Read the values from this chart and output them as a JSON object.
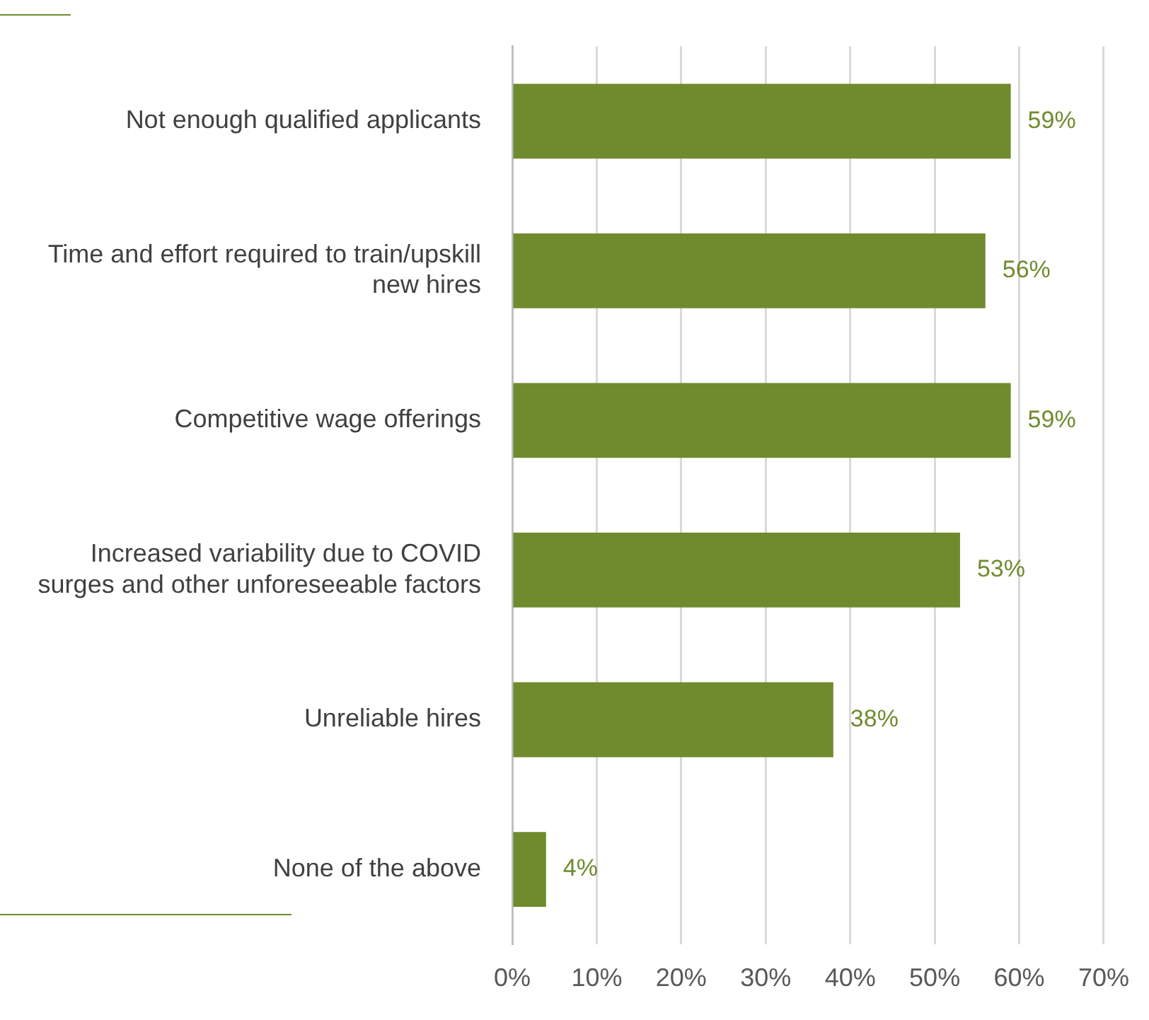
{
  "chart_data": {
    "type": "bar",
    "orientation": "horizontal",
    "categories": [
      "Not enough qualified applicants",
      "Time and effort required to train/upskill new hires",
      "Competitive wage offerings",
      "Increased variability due to COVID surges and other unforeseeable factors",
      "Unreliable hires",
      "None of the above"
    ],
    "values": [
      59,
      56,
      59,
      53,
      38,
      4
    ],
    "value_labels": [
      "59%",
      "56%",
      "59%",
      "53%",
      "38%",
      "4%"
    ],
    "color": "#6f8b2e",
    "xlim": [
      0,
      70
    ],
    "xticks": [
      {
        "value": 0,
        "label": "0%"
      },
      {
        "value": 10,
        "label": "10%"
      },
      {
        "value": 20,
        "label": "20%"
      },
      {
        "value": 30,
        "label": "30%"
      },
      {
        "value": 40,
        "label": "40%"
      },
      {
        "value": 50,
        "label": "50%"
      },
      {
        "value": 60,
        "label": "60%"
      },
      {
        "value": 70,
        "label": "70%"
      }
    ],
    "grid": "x",
    "legend": false
  }
}
